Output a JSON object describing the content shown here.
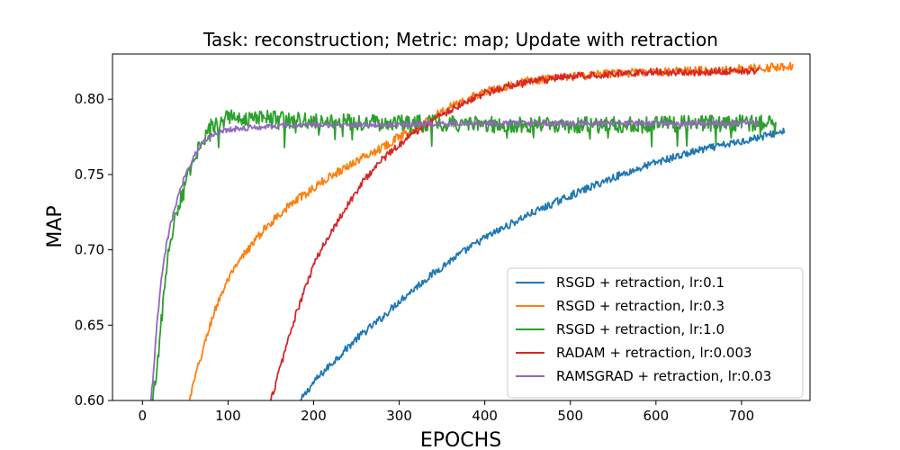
{
  "chart_data": {
    "type": "line",
    "title": "Task: reconstruction; Metric: map; Update with retraction",
    "xlabel": "EPOCHS",
    "ylabel": "MAP",
    "xlim": [
      -35,
      780
    ],
    "ylim": [
      0.6,
      0.83
    ],
    "x_ticks": [
      0,
      100,
      200,
      300,
      400,
      500,
      600,
      700
    ],
    "x_tick_labels": [
      "0",
      "100",
      "200",
      "300",
      "400",
      "500",
      "600",
      "700"
    ],
    "y_ticks": [
      0.6,
      0.65,
      0.7,
      0.75,
      0.8
    ],
    "y_tick_labels": [
      "0.60",
      "0.65",
      "0.70",
      "0.75",
      "0.80"
    ],
    "grid": false,
    "legend_position": "lower-right",
    "series": [
      {
        "name": "RSGD + retraction, lr:0.1",
        "color": "#1f77b4",
        "x": [
          185,
          200,
          220,
          250,
          280,
          300,
          330,
          360,
          400,
          450,
          500,
          550,
          600,
          650,
          700,
          730,
          750
        ],
        "y": [
          0.6,
          0.612,
          0.624,
          0.641,
          0.655,
          0.666,
          0.68,
          0.693,
          0.708,
          0.723,
          0.736,
          0.748,
          0.758,
          0.766,
          0.772,
          0.776,
          0.779
        ]
      },
      {
        "name": "RSGD + retraction, lr:0.3",
        "color": "#ff7f0e",
        "x": [
          55,
          60,
          70,
          80,
          90,
          100,
          120,
          140,
          160,
          180,
          200,
          220,
          250,
          280,
          300,
          330,
          360,
          400,
          450,
          500,
          550,
          600,
          650,
          700,
          730,
          760
        ],
        "y": [
          0.6,
          0.612,
          0.632,
          0.652,
          0.668,
          0.68,
          0.698,
          0.712,
          0.724,
          0.733,
          0.741,
          0.749,
          0.759,
          0.768,
          0.775,
          0.785,
          0.795,
          0.805,
          0.812,
          0.815,
          0.817,
          0.818,
          0.819,
          0.82,
          0.821,
          0.822
        ]
      },
      {
        "name": "RSGD + retraction, lr:1.0",
        "color": "#2ca02c",
        "x": [
          12,
          15,
          20,
          25,
          30,
          35,
          40,
          50,
          60,
          70,
          80,
          100,
          150,
          200,
          250,
          300,
          350,
          400,
          450,
          500,
          550,
          600,
          650,
          700,
          740
        ],
        "y": [
          0.6,
          0.612,
          0.64,
          0.67,
          0.695,
          0.712,
          0.725,
          0.745,
          0.76,
          0.772,
          0.782,
          0.788,
          0.787,
          0.785,
          0.785,
          0.784,
          0.784,
          0.783,
          0.783,
          0.783,
          0.783,
          0.783,
          0.784,
          0.784,
          0.784
        ]
      },
      {
        "name": "RADAM + retraction, lr:0.003",
        "color": "#d62728",
        "x": [
          150,
          160,
          170,
          180,
          190,
          200,
          220,
          240,
          260,
          280,
          300,
          320,
          350,
          380,
          400,
          430,
          460,
          500,
          550,
          600,
          650,
          700,
          720
        ],
        "y": [
          0.6,
          0.62,
          0.64,
          0.658,
          0.674,
          0.69,
          0.712,
          0.73,
          0.747,
          0.76,
          0.77,
          0.779,
          0.79,
          0.799,
          0.804,
          0.809,
          0.812,
          0.815,
          0.817,
          0.818,
          0.818,
          0.819,
          0.819
        ]
      },
      {
        "name": "RAMSGRAD + retraction, lr:0.03",
        "color": "#9467bd",
        "x": [
          10,
          13,
          17,
          22,
          27,
          32,
          40,
          50,
          60,
          70,
          80,
          100,
          150,
          200,
          250,
          300,
          350,
          400,
          450,
          500,
          550,
          600,
          650,
          700,
          720
        ],
        "y": [
          0.6,
          0.62,
          0.65,
          0.68,
          0.7,
          0.715,
          0.732,
          0.75,
          0.762,
          0.771,
          0.776,
          0.78,
          0.782,
          0.783,
          0.783,
          0.783,
          0.784,
          0.784,
          0.784,
          0.784,
          0.784,
          0.784,
          0.784,
          0.784,
          0.784
        ]
      }
    ]
  }
}
